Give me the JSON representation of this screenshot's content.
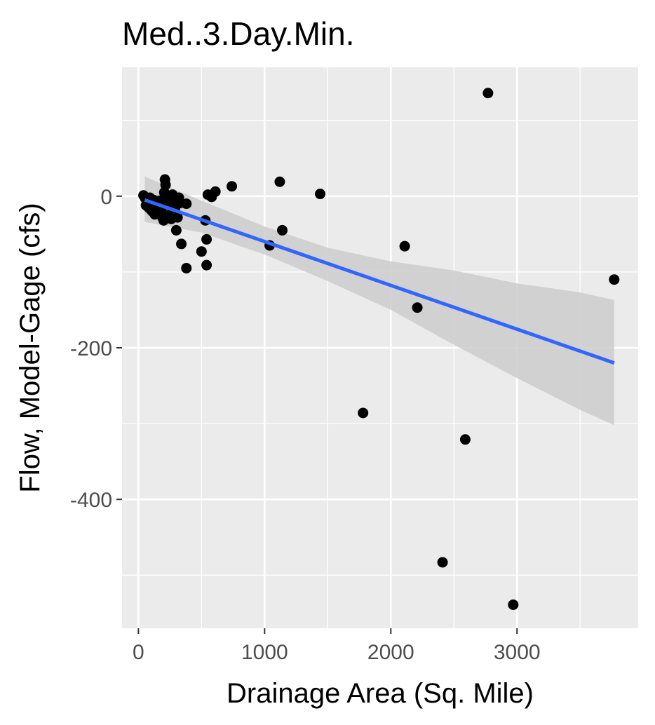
{
  "chart_data": {
    "type": "scatter",
    "title": "Med..3.Day.Min.",
    "xlabel": "Drainage Area (Sq. Mile)",
    "ylabel": "Flow, Model-Gage (cfs)",
    "xlim": [
      -130,
      3960
    ],
    "ylim": [
      -570,
      170
    ],
    "x_ticks": [
      0,
      1000,
      2000,
      3000
    ],
    "y_ticks": [
      0,
      -200,
      -400
    ],
    "x_minor": [
      500,
      1500,
      2500,
      3500
    ],
    "y_minor": [
      100,
      -100,
      -300,
      -500
    ],
    "grid": true,
    "points": [
      {
        "x": 40,
        "y": 1
      },
      {
        "x": 55,
        "y": -3
      },
      {
        "x": 60,
        "y": -12
      },
      {
        "x": 70,
        "y": -8
      },
      {
        "x": 80,
        "y": -15
      },
      {
        "x": 90,
        "y": -2
      },
      {
        "x": 100,
        "y": -18
      },
      {
        "x": 110,
        "y": -20
      },
      {
        "x": 120,
        "y": -5
      },
      {
        "x": 130,
        "y": -24
      },
      {
        "x": 140,
        "y": -10
      },
      {
        "x": 150,
        "y": -14
      },
      {
        "x": 160,
        "y": -22
      },
      {
        "x": 170,
        "y": -6
      },
      {
        "x": 180,
        "y": -19
      },
      {
        "x": 190,
        "y": -28
      },
      {
        "x": 200,
        "y": -32
      },
      {
        "x": 205,
        "y": 5
      },
      {
        "x": 210,
        "y": 22
      },
      {
        "x": 215,
        "y": 15
      },
      {
        "x": 220,
        "y": -1
      },
      {
        "x": 230,
        "y": -11
      },
      {
        "x": 240,
        "y": -25
      },
      {
        "x": 250,
        "y": -8
      },
      {
        "x": 260,
        "y": -30
      },
      {
        "x": 270,
        "y": 2
      },
      {
        "x": 280,
        "y": -4
      },
      {
        "x": 290,
        "y": -16
      },
      {
        "x": 300,
        "y": -45
      },
      {
        "x": 310,
        "y": -28
      },
      {
        "x": 320,
        "y": -2
      },
      {
        "x": 330,
        "y": -9
      },
      {
        "x": 340,
        "y": -63
      },
      {
        "x": 380,
        "y": -95
      },
      {
        "x": 380,
        "y": -10
      },
      {
        "x": 500,
        "y": -73
      },
      {
        "x": 530,
        "y": -32
      },
      {
        "x": 540,
        "y": -57
      },
      {
        "x": 540,
        "y": -91
      },
      {
        "x": 550,
        "y": 2
      },
      {
        "x": 580,
        "y": -1
      },
      {
        "x": 610,
        "y": 6
      },
      {
        "x": 740,
        "y": 13
      },
      {
        "x": 1040,
        "y": -65
      },
      {
        "x": 1120,
        "y": 19
      },
      {
        "x": 1140,
        "y": -45
      },
      {
        "x": 1440,
        "y": 3
      },
      {
        "x": 1780,
        "y": -286
      },
      {
        "x": 2110,
        "y": -66
      },
      {
        "x": 2210,
        "y": -147
      },
      {
        "x": 2410,
        "y": -483
      },
      {
        "x": 2590,
        "y": -321
      },
      {
        "x": 2770,
        "y": 136
      },
      {
        "x": 2970,
        "y": -539
      },
      {
        "x": 3770,
        "y": -110
      }
    ],
    "trend": {
      "x0": 50,
      "y0": -5,
      "x1": 3770,
      "y1": -220
    },
    "band": {
      "x": [
        50,
        500,
        1000,
        1500,
        2000,
        2500,
        3000,
        3500,
        3770
      ],
      "upper": [
        26,
        -6,
        -40,
        -68,
        -86,
        -98,
        -115,
        -127,
        -137
      ],
      "lower": [
        -34,
        -48,
        -77,
        -112,
        -150,
        -196,
        -240,
        -282,
        -302
      ]
    },
    "colors": {
      "panel": "#ebebeb",
      "grid": "#ffffff",
      "point": "#000000",
      "trend": "#3366ff",
      "band": "#cccccc"
    }
  }
}
